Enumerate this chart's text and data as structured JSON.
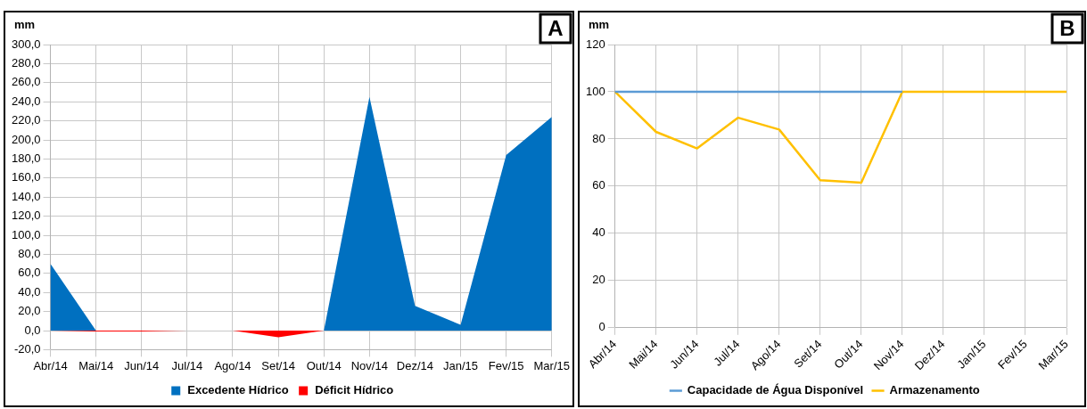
{
  "chart_data": [
    {
      "type": "area",
      "ylabel": "mm",
      "annotations": [
        "A"
      ],
      "categories": [
        "Abr/14",
        "Mai/14",
        "Jun/14",
        "Jul/14",
        "Ago/14",
        "Set/14",
        "Out/14",
        "Nov/14",
        "Dez/14",
        "Jan/15",
        "Fev/15",
        "Mar/15"
      ],
      "series": [
        {
          "name": "Excedente Hídrico",
          "color": "#0070c0",
          "values": [
            70,
            0,
            0,
            0,
            0,
            0,
            0,
            245,
            26,
            6,
            184,
            224
          ]
        },
        {
          "name": "Déficit Hídrico",
          "color": "#ff0000",
          "values": [
            0,
            -1,
            -1,
            0,
            0,
            -7,
            0,
            0,
            0,
            0,
            0,
            0
          ]
        }
      ],
      "ylim": [
        -20,
        300
      ],
      "yticks": [
        {
          "value": -20,
          "label": "-20,0"
        },
        {
          "value": 0,
          "label": "0,0"
        },
        {
          "value": 20,
          "label": "20,0"
        },
        {
          "value": 40,
          "label": "40,0"
        },
        {
          "value": 60,
          "label": "60,0"
        },
        {
          "value": 80,
          "label": "80,0"
        },
        {
          "value": 100,
          "label": "100,0"
        },
        {
          "value": 120,
          "label": "120,0"
        },
        {
          "value": 140,
          "label": "140,0"
        },
        {
          "value": 160,
          "label": "160,0"
        },
        {
          "value": 180,
          "label": "180,0"
        },
        {
          "value": 200,
          "label": "200,0"
        },
        {
          "value": 220,
          "label": "220,0"
        },
        {
          "value": 240,
          "label": "240,0"
        },
        {
          "value": 260,
          "label": "260,0"
        },
        {
          "value": 280,
          "label": "280,0"
        },
        {
          "value": 300,
          "label": "300,0"
        }
      ],
      "grid": true,
      "legend": "bottom"
    },
    {
      "type": "line",
      "ylabel": "mm",
      "annotations": [
        "B"
      ],
      "categories": [
        "Abr/14",
        "Mai/14",
        "Jun/14",
        "Jul/14",
        "Ago/14",
        "Set/14",
        "Out/14",
        "Nov/14",
        "Dez/14",
        "Jan/15",
        "Fev/15",
        "Mar/15"
      ],
      "series": [
        {
          "name": "Capacidade de Água Disponível",
          "color": "#5b9bd5",
          "values": [
            100,
            100,
            100,
            100,
            100,
            100,
            100,
            100,
            null,
            null,
            null,
            null
          ]
        },
        {
          "name": "Armazenamento",
          "color": "#ffc000",
          "values": [
            100,
            83,
            76,
            89,
            84,
            62.5,
            61.5,
            100,
            100,
            100,
            100,
            100
          ]
        }
      ],
      "ylim": [
        0,
        120
      ],
      "yticks": [
        0,
        20,
        40,
        60,
        80,
        100,
        120
      ],
      "grid": true,
      "legend": "bottom"
    }
  ]
}
